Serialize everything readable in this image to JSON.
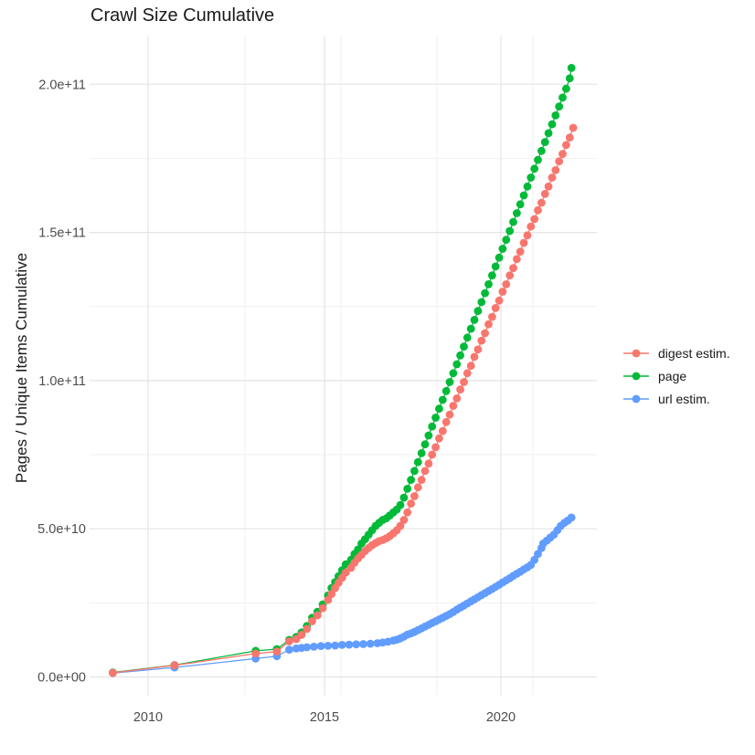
{
  "title": "Crawl Size Cumulative",
  "y_axis_label": "Pages / Unique Items Cumulative",
  "x_ticks": [
    "2010",
    "2015",
    "2020"
  ],
  "y_ticks": [
    "0.0e+00",
    "5.0e+10",
    "1.0e+11",
    "1.5e+11",
    "2.0e+11"
  ],
  "colors": {
    "digest": "#F8766D",
    "page": "#00BA38",
    "url": "#619CFF",
    "grid_major": "#E4E4E4",
    "grid_minor": "#F1F1F1",
    "tick_text": "#4D4D4D"
  },
  "chart_data": {
    "type": "scatter",
    "title": "Crawl Size Cumulative",
    "xlabel": "",
    "ylabel": "Pages / Unique Items Cumulative",
    "xlim": [
      2008.6,
      2022.7
    ],
    "ylim": [
      0,
      215000000000.0
    ],
    "x_tick_values": [
      2010,
      2015,
      2020
    ],
    "y_tick_values": [
      0,
      50000000000.0,
      100000000000.0,
      150000000000.0,
      200000000000.0
    ],
    "grid": true,
    "legend_position": "right",
    "marker_style": "point-with-line",
    "series": [
      {
        "name": "digest estim.",
        "color": "#F8766D",
        "points": [
          [
            2009.0,
            1400000000.0
          ],
          [
            2010.75,
            3900000000.0
          ],
          [
            2013.05,
            7900000000.0
          ],
          [
            2013.65,
            8600000000.0
          ],
          [
            2014.0,
            12000000000.0
          ],
          [
            2014.2,
            12800000000.0
          ],
          [
            2014.35,
            14200000000.0
          ],
          [
            2014.5,
            16200000000.0
          ],
          [
            2014.65,
            18800000000.0
          ],
          [
            2014.8,
            20800000000.0
          ],
          [
            2014.95,
            23200000000.0
          ],
          [
            2015.1,
            26000000000.0
          ],
          [
            2015.2,
            28000000000.0
          ],
          [
            2015.3,
            30000000000.0
          ],
          [
            2015.4,
            31800000000.0
          ],
          [
            2015.5,
            33500000000.0
          ],
          [
            2015.6,
            35200000000.0
          ],
          [
            2015.75,
            36800000000.0
          ],
          [
            2015.85,
            38500000000.0
          ],
          [
            2015.95,
            40000000000.0
          ],
          [
            2016.05,
            41200000000.0
          ],
          [
            2016.15,
            42500000000.0
          ],
          [
            2016.25,
            43500000000.0
          ],
          [
            2016.35,
            44500000000.0
          ],
          [
            2016.45,
            45200000000.0
          ],
          [
            2016.55,
            45800000000.0
          ],
          [
            2016.65,
            46200000000.0
          ],
          [
            2016.75,
            46800000000.0
          ],
          [
            2016.85,
            47500000000.0
          ],
          [
            2016.95,
            48500000000.0
          ],
          [
            2017.05,
            49500000000.0
          ],
          [
            2017.15,
            51000000000.0
          ],
          [
            2017.25,
            53000000000.0
          ],
          [
            2017.35,
            55500000000.0
          ],
          [
            2017.45,
            58500000000.0
          ],
          [
            2017.55,
            61000000000.0
          ],
          [
            2017.65,
            64000000000.0
          ],
          [
            2017.75,
            66500000000.0
          ],
          [
            2017.85,
            69500000000.0
          ],
          [
            2017.95,
            72000000000.0
          ],
          [
            2018.05,
            75000000000.0
          ],
          [
            2018.15,
            77500000000.0
          ],
          [
            2018.25,
            80500000000.0
          ],
          [
            2018.35,
            83000000000.0
          ],
          [
            2018.45,
            86000000000.0
          ],
          [
            2018.55,
            88500000000.0
          ],
          [
            2018.65,
            91500000000.0
          ],
          [
            2018.75,
            94000000000.0
          ],
          [
            2018.85,
            97000000000.0
          ],
          [
            2018.95,
            99500000000.0
          ],
          [
            2019.05,
            102500000000.0
          ],
          [
            2019.15,
            105000000000.0
          ],
          [
            2019.25,
            108000000000.0
          ],
          [
            2019.35,
            110500000000.0
          ],
          [
            2019.45,
            113500000000.0
          ],
          [
            2019.55,
            116000000000.0
          ],
          [
            2019.65,
            119000000000.0
          ],
          [
            2019.75,
            121500000000.0
          ],
          [
            2019.85,
            124500000000.0
          ],
          [
            2019.95,
            127000000000.0
          ],
          [
            2020.05,
            130000000000.0
          ],
          [
            2020.15,
            132500000000.0
          ],
          [
            2020.25,
            135500000000.0
          ],
          [
            2020.35,
            138000000000.0
          ],
          [
            2020.45,
            141000000000.0
          ],
          [
            2020.55,
            143500000000.0
          ],
          [
            2020.65,
            146500000000.0
          ],
          [
            2020.75,
            149000000000.0
          ],
          [
            2020.85,
            152000000000.0
          ],
          [
            2020.95,
            154500000000.0
          ],
          [
            2021.05,
            157500000000.0
          ],
          [
            2021.15,
            160000000000.0
          ],
          [
            2021.25,
            163000000000.0
          ],
          [
            2021.35,
            165500000000.0
          ],
          [
            2021.45,
            168500000000.0
          ],
          [
            2021.55,
            171000000000.0
          ],
          [
            2021.65,
            174000000000.0
          ],
          [
            2021.75,
            176500000000.0
          ],
          [
            2021.85,
            179500000000.0
          ],
          [
            2021.95,
            182000000000.0
          ],
          [
            2022.05,
            185300000000.0
          ]
        ]
      },
      {
        "name": "page",
        "color": "#00BA38",
        "points": [
          [
            2009.0,
            1500000000.0
          ],
          [
            2010.75,
            4000000000.0
          ],
          [
            2013.05,
            8800000000.0
          ],
          [
            2013.65,
            9400000000.0
          ],
          [
            2014.0,
            12500000000.0
          ],
          [
            2014.2,
            13500000000.0
          ],
          [
            2014.35,
            15000000000.0
          ],
          [
            2014.5,
            17200000000.0
          ],
          [
            2014.65,
            20000000000.0
          ],
          [
            2014.8,
            22000000000.0
          ],
          [
            2014.95,
            24500000000.0
          ],
          [
            2015.1,
            27500000000.0
          ],
          [
            2015.2,
            30000000000.0
          ],
          [
            2015.3,
            32000000000.0
          ],
          [
            2015.4,
            34000000000.0
          ],
          [
            2015.5,
            36000000000.0
          ],
          [
            2015.6,
            38000000000.0
          ],
          [
            2015.75,
            39500000000.0
          ],
          [
            2015.85,
            41500000000.0
          ],
          [
            2015.95,
            43000000000.0
          ],
          [
            2016.05,
            45000000000.0
          ],
          [
            2016.15,
            46500000000.0
          ],
          [
            2016.25,
            48000000000.0
          ],
          [
            2016.35,
            49500000000.0
          ],
          [
            2016.45,
            51000000000.0
          ],
          [
            2016.55,
            52000000000.0
          ],
          [
            2016.65,
            53000000000.0
          ],
          [
            2016.75,
            53500000000.0
          ],
          [
            2016.85,
            54500000000.0
          ],
          [
            2016.95,
            55500000000.0
          ],
          [
            2017.05,
            56500000000.0
          ],
          [
            2017.15,
            58000000000.0
          ],
          [
            2017.25,
            60500000000.0
          ],
          [
            2017.35,
            63500000000.0
          ],
          [
            2017.45,
            66500000000.0
          ],
          [
            2017.55,
            69500000000.0
          ],
          [
            2017.65,
            72500000000.0
          ],
          [
            2017.75,
            75500000000.0
          ],
          [
            2017.85,
            78500000000.0
          ],
          [
            2017.95,
            81500000000.0
          ],
          [
            2018.05,
            84500000000.0
          ],
          [
            2018.15,
            87500000000.0
          ],
          [
            2018.25,
            90500000000.0
          ],
          [
            2018.35,
            93500000000.0
          ],
          [
            2018.45,
            96500000000.0
          ],
          [
            2018.55,
            99500000000.0
          ],
          [
            2018.65,
            102500000000.0
          ],
          [
            2018.75,
            105500000000.0
          ],
          [
            2018.85,
            108500000000.0
          ],
          [
            2018.95,
            111500000000.0
          ],
          [
            2019.05,
            114500000000.0
          ],
          [
            2019.15,
            117500000000.0
          ],
          [
            2019.25,
            120500000000.0
          ],
          [
            2019.35,
            123500000000.0
          ],
          [
            2019.45,
            126500000000.0
          ],
          [
            2019.55,
            129500000000.0
          ],
          [
            2019.65,
            132500000000.0
          ],
          [
            2019.75,
            135500000000.0
          ],
          [
            2019.85,
            138500000000.0
          ],
          [
            2019.95,
            141500000000.0
          ],
          [
            2020.05,
            144500000000.0
          ],
          [
            2020.15,
            147500000000.0
          ],
          [
            2020.25,
            150500000000.0
          ],
          [
            2020.35,
            153500000000.0
          ],
          [
            2020.45,
            156500000000.0
          ],
          [
            2020.55,
            159500000000.0
          ],
          [
            2020.65,
            162500000000.0
          ],
          [
            2020.75,
            165500000000.0
          ],
          [
            2020.85,
            168500000000.0
          ],
          [
            2020.95,
            171500000000.0
          ],
          [
            2021.05,
            174500000000.0
          ],
          [
            2021.15,
            177500000000.0
          ],
          [
            2021.25,
            180500000000.0
          ],
          [
            2021.35,
            183500000000.0
          ],
          [
            2021.45,
            186500000000.0
          ],
          [
            2021.55,
            189500000000.0
          ],
          [
            2021.65,
            192500000000.0
          ],
          [
            2021.75,
            195500000000.0
          ],
          [
            2021.85,
            198500000000.0
          ],
          [
            2021.95,
            202000000000.0
          ],
          [
            2022.0,
            205500000000.0
          ]
        ]
      },
      {
        "name": "url estim.",
        "color": "#619CFF",
        "points": [
          [
            2009.0,
            1300000000.0
          ],
          [
            2010.75,
            3200000000.0
          ],
          [
            2013.05,
            6200000000.0
          ],
          [
            2013.65,
            7000000000.0
          ],
          [
            2014.0,
            9200000000.0
          ],
          [
            2014.2,
            9600000000.0
          ],
          [
            2014.35,
            9800000000.0
          ],
          [
            2014.5,
            10000000000.0
          ],
          [
            2014.7,
            10200000000.0
          ],
          [
            2014.9,
            10400000000.0
          ],
          [
            2015.1,
            10500000000.0
          ],
          [
            2015.3,
            10600000000.0
          ],
          [
            2015.5,
            10800000000.0
          ],
          [
            2015.7,
            10900000000.0
          ],
          [
            2015.9,
            11000000000.0
          ],
          [
            2016.1,
            11100000000.0
          ],
          [
            2016.3,
            11200000000.0
          ],
          [
            2016.5,
            11400000000.0
          ],
          [
            2016.65,
            11600000000.0
          ],
          [
            2016.8,
            11900000000.0
          ],
          [
            2016.95,
            12300000000.0
          ],
          [
            2017.05,
            12600000000.0
          ],
          [
            2017.15,
            13000000000.0
          ],
          [
            2017.25,
            13600000000.0
          ],
          [
            2017.35,
            14300000000.0
          ],
          [
            2017.45,
            14700000000.0
          ],
          [
            2017.55,
            15200000000.0
          ],
          [
            2017.65,
            15800000000.0
          ],
          [
            2017.75,
            16400000000.0
          ],
          [
            2017.85,
            17000000000.0
          ],
          [
            2017.95,
            17600000000.0
          ],
          [
            2018.05,
            18200000000.0
          ],
          [
            2018.15,
            18800000000.0
          ],
          [
            2018.25,
            19400000000.0
          ],
          [
            2018.35,
            20000000000.0
          ],
          [
            2018.45,
            20600000000.0
          ],
          [
            2018.55,
            21200000000.0
          ],
          [
            2018.65,
            21900000000.0
          ],
          [
            2018.75,
            22700000000.0
          ],
          [
            2018.85,
            23400000000.0
          ],
          [
            2018.95,
            24100000000.0
          ],
          [
            2019.05,
            24800000000.0
          ],
          [
            2019.15,
            25500000000.0
          ],
          [
            2019.25,
            26200000000.0
          ],
          [
            2019.35,
            26900000000.0
          ],
          [
            2019.45,
            27600000000.0
          ],
          [
            2019.55,
            28300000000.0
          ],
          [
            2019.65,
            29000000000.0
          ],
          [
            2019.75,
            29700000000.0
          ],
          [
            2019.85,
            30400000000.0
          ],
          [
            2019.95,
            31100000000.0
          ],
          [
            2020.05,
            31900000000.0
          ],
          [
            2020.15,
            32600000000.0
          ],
          [
            2020.25,
            33300000000.0
          ],
          [
            2020.35,
            34100000000.0
          ],
          [
            2020.45,
            34800000000.0
          ],
          [
            2020.55,
            35500000000.0
          ],
          [
            2020.65,
            36300000000.0
          ],
          [
            2020.75,
            37000000000.0
          ],
          [
            2020.85,
            37800000000.0
          ],
          [
            2020.95,
            39500000000.0
          ],
          [
            2021.05,
            41500000000.0
          ],
          [
            2021.15,
            43500000000.0
          ],
          [
            2021.2,
            45000000000.0
          ],
          [
            2021.3,
            46000000000.0
          ],
          [
            2021.4,
            47000000000.0
          ],
          [
            2021.5,
            48000000000.0
          ],
          [
            2021.6,
            49500000000.0
          ],
          [
            2021.7,
            51000000000.0
          ],
          [
            2021.8,
            52000000000.0
          ],
          [
            2021.9,
            52800000000.0
          ],
          [
            2022.0,
            53800000000.0
          ]
        ]
      }
    ]
  }
}
